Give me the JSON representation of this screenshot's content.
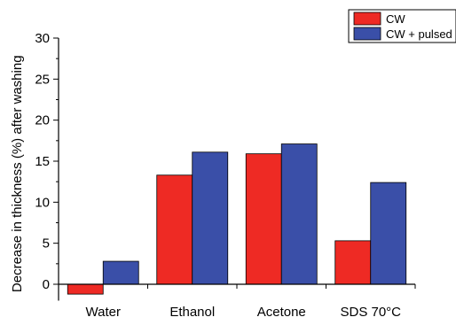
{
  "chart_data": {
    "type": "bar",
    "categories": [
      "Water",
      "Ethanol",
      "Acetone",
      "SDS 70°C"
    ],
    "series": [
      {
        "name": "CW",
        "color": "#ee2a24",
        "values": [
          -1.2,
          13.3,
          15.9,
          5.3
        ]
      },
      {
        "name": "CW + pulsed",
        "color": "#3a4fa8",
        "values": [
          2.8,
          16.1,
          17.1,
          12.4
        ]
      }
    ],
    "title": "",
    "xlabel": "",
    "ylabel": "Decrease in thickness (%) after washing",
    "ylim": [
      -2,
      30
    ],
    "yticks": [
      0,
      5,
      10,
      15,
      20,
      25,
      30
    ],
    "grid": false,
    "legend_position": "top-right"
  }
}
